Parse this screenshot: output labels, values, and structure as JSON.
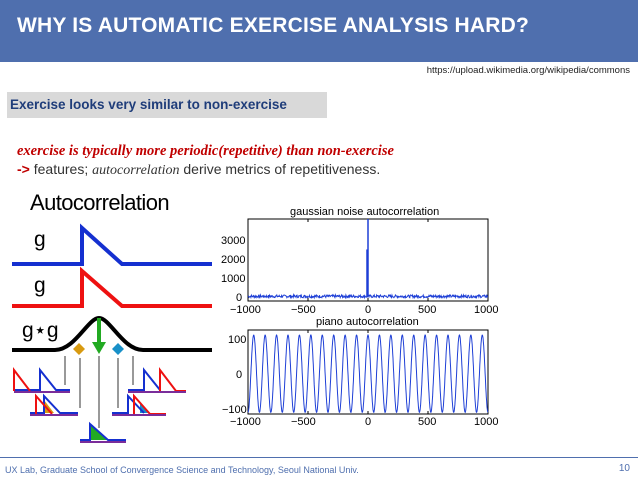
{
  "header": {
    "title": "WHY IS AUTOMATIC EXERCISE ANALYSIS HARD?"
  },
  "source_url": "https://upload.wikimedia.org/wikipedia/commons",
  "section_label": "Exercise looks very similar to non-exercise",
  "body": {
    "line1": "exercise is typically more periodic(repetitive) than non-exercise",
    "line2_arrow": "->",
    "line2_text_a": " features; ",
    "line2_italic": "autocorrelation",
    "line2_text_b": " derive metrics of repetitiveness."
  },
  "figure": {
    "title": "Autocorrelation",
    "label_g1": "g",
    "label_g2": "g",
    "label_gg": "g⋆g",
    "colors": {
      "blue": "#1530d0",
      "red": "#ee1111",
      "black": "#000000",
      "green": "#22aa22",
      "purple": "#7a2d9a",
      "gold": "#d89a10",
      "cyan": "#1890c8"
    }
  },
  "chart_data": [
    {
      "type": "line",
      "title": "gaussian noise autocorrelation",
      "x_ticks": [
        "−1000",
        "−500",
        "0",
        "500",
        "1000"
      ],
      "y_ticks": [
        "3000",
        "2000",
        "1000",
        "0"
      ],
      "xlim": [
        -1000,
        1000
      ],
      "ylim": [
        -200,
        3300
      ],
      "peak": {
        "x": 0,
        "y": 3300
      },
      "secondary_peak": {
        "x": 0,
        "y": 2000
      },
      "noise_amplitude": 60,
      "color": "#1e3fd6"
    },
    {
      "type": "line",
      "title": "piano autocorrelation",
      "x_ticks": [
        "−1000",
        "−500",
        "0",
        "500",
        "1000"
      ],
      "y_ticks": [
        "100",
        "0",
        "−100"
      ],
      "xlim": [
        -1000,
        1000
      ],
      "ylim": [
        -120,
        130
      ],
      "amplitude": 115,
      "cycles": 21,
      "color": "#1e3fd6"
    }
  ],
  "footer": {
    "text": "UX Lab, Graduate School of Convergence Science and  Technology, Seoul National Univ.",
    "page": "10"
  }
}
